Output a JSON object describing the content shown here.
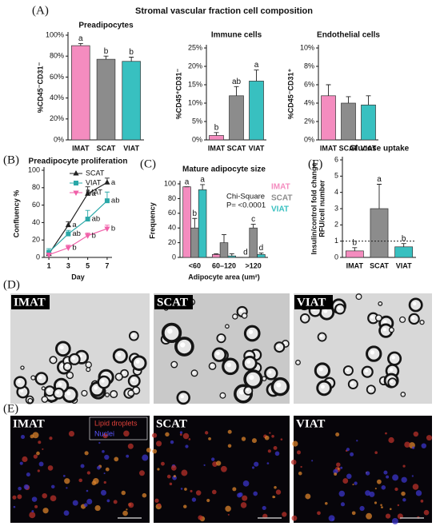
{
  "figure_title": "Stromal vascular fraction cell composition",
  "panel_labels": [
    "(A)",
    "(B)",
    "(C)",
    "(F)",
    "(D)",
    "(E)"
  ],
  "chart_data": [
    {
      "type": "bar",
      "title": "Preadipocytes",
      "ylabel": "%CD45⁻CD31⁻",
      "categories": [
        "IMAT",
        "SCAT",
        "VIAT"
      ],
      "values": [
        90,
        77,
        75
      ],
      "errors": [
        2,
        3,
        4
      ],
      "letters": [
        "a",
        "b",
        "b"
      ],
      "colors": [
        "#f48cbf",
        "#8c8c8c",
        "#38c0c0"
      ],
      "ylim": [
        0,
        100
      ],
      "yticks": [
        {
          "value": 0,
          "label": "0%"
        },
        {
          "value": 20,
          "label": "20%"
        },
        {
          "value": 40,
          "label": "40%"
        },
        {
          "value": 60,
          "label": "60%"
        },
        {
          "value": 80,
          "label": "80%"
        },
        {
          "value": 100,
          "label": "100%"
        }
      ]
    },
    {
      "type": "bar",
      "title": "Immune cells",
      "ylabel": "%CD45⁺CD31⁻",
      "categories": [
        "IMAT",
        "SCAT",
        "VIAT"
      ],
      "values": [
        1.2,
        12,
        16
      ],
      "errors": [
        0.8,
        2.5,
        3
      ],
      "letters": [
        "b",
        "ab",
        "a"
      ],
      "colors": [
        "#f48cbf",
        "#8c8c8c",
        "#38c0c0"
      ],
      "ylim": [
        0,
        25
      ],
      "yticks": [
        {
          "value": 0,
          "label": "0%"
        },
        {
          "value": 5,
          "label": "5%"
        },
        {
          "value": 10,
          "label": "10%"
        },
        {
          "value": 15,
          "label": "15%"
        },
        {
          "value": 20,
          "label": "20%"
        },
        {
          "value": 25,
          "label": "25%"
        }
      ]
    },
    {
      "type": "bar",
      "title": "Endothelial cells",
      "ylabel": "%CD45⁻CD31⁺",
      "categories": [
        "IMAT",
        "SCAT",
        "VIAT"
      ],
      "values": [
        4.8,
        4.0,
        3.8
      ],
      "errors": [
        1.2,
        0.7,
        1.0
      ],
      "colors": [
        "#f48cbf",
        "#8c8c8c",
        "#38c0c0"
      ],
      "ylim": [
        0,
        10
      ],
      "yticks": [
        {
          "value": 0,
          "label": "0%"
        },
        {
          "value": 2,
          "label": "2%"
        },
        {
          "value": 4,
          "label": "4%"
        },
        {
          "value": 6,
          "label": "6%"
        },
        {
          "value": 8,
          "label": "8%"
        },
        {
          "value": 10,
          "label": "10%"
        }
      ]
    },
    {
      "type": "line",
      "title": "Preadipocyte proliferation",
      "xlabel": "Day",
      "ylabel": "Confluency %",
      "x": [
        1,
        3,
        5,
        7
      ],
      "xlim": [
        0.5,
        7.5
      ],
      "xticks": [
        1,
        3,
        5,
        7
      ],
      "ylim": [
        0,
        100
      ],
      "yticks": [
        0,
        20,
        40,
        60,
        80,
        100
      ],
      "series": [
        {
          "name": "SCAT",
          "color": "#222222",
          "marker": "triangle",
          "values": [
            4,
            37,
            73,
            86
          ],
          "errors": [
            2,
            4,
            8,
            5
          ],
          "letters": [
            null,
            "a",
            "a",
            "a"
          ]
        },
        {
          "name": "VIAT",
          "color": "#2aa8a8",
          "marker": "square",
          "values": [
            6,
            27,
            44,
            65
          ],
          "errors": [
            4,
            4,
            10,
            10
          ],
          "letters": [
            null,
            "ab",
            "ab",
            "ab"
          ]
        },
        {
          "name": "IMAT",
          "color": "#f05fa8",
          "marker": "triangle-down",
          "values": [
            3,
            11,
            25,
            33
          ],
          "errors": [
            2,
            3,
            3,
            4
          ],
          "letters": [
            null,
            "b",
            "b",
            "b"
          ]
        }
      ]
    },
    {
      "type": "bar",
      "title": "Mature adipocyte size",
      "xlabel": "Adipocyte area (um²)",
      "ylabel": "Frequency",
      "categories": [
        "<60",
        "60–120",
        ">120"
      ],
      "ylim": [
        0,
        100
      ],
      "yticks": [
        0,
        20,
        40,
        60,
        80,
        100
      ],
      "annotations": [
        "Chi-Square",
        "P= <0.0001"
      ],
      "series": [
        {
          "name": "IMAT",
          "color": "#f48cbf",
          "values": [
            96,
            4,
            0
          ],
          "errors": [
            0,
            1,
            0
          ],
          "letters": [
            "a",
            null,
            "d"
          ]
        },
        {
          "name": "SCAT",
          "color": "#8c8c8c",
          "values": [
            40,
            20,
            40
          ],
          "errors": [
            13,
            11,
            5
          ],
          "letters": [
            "b",
            null,
            "c"
          ]
        },
        {
          "name": "VIAT",
          "color": "#38c0c0",
          "values": [
            92,
            2,
            4
          ],
          "errors": [
            7,
            3,
            2
          ],
          "letters": [
            "a",
            null,
            "d"
          ]
        }
      ]
    },
    {
      "type": "bar",
      "title": "Glucose uptake",
      "ylabel": [
        "Insulin/control fold change",
        "RFU/cell number"
      ],
      "categories": [
        "IMAT",
        "SCAT",
        "VIAT"
      ],
      "values": [
        0.4,
        3.0,
        0.65
      ],
      "errors": [
        0.2,
        1.5,
        0.2
      ],
      "letters": [
        "b",
        "a",
        "b"
      ],
      "colors": [
        "#f48cbf",
        "#8c8c8c",
        "#38c0c0"
      ],
      "ref_line": 1,
      "ylim": [
        0,
        6
      ],
      "yticks": [
        0,
        1,
        2,
        3,
        4,
        5,
        6
      ]
    }
  ],
  "micrographs": {
    "labels": [
      "IMAT",
      "SCAT",
      "VIAT"
    ]
  },
  "fluorescence": {
    "labels": [
      "IMAT",
      "SCAT",
      "VIAT"
    ],
    "legend": [
      "Lipid droplets",
      "Nuclei"
    ]
  }
}
